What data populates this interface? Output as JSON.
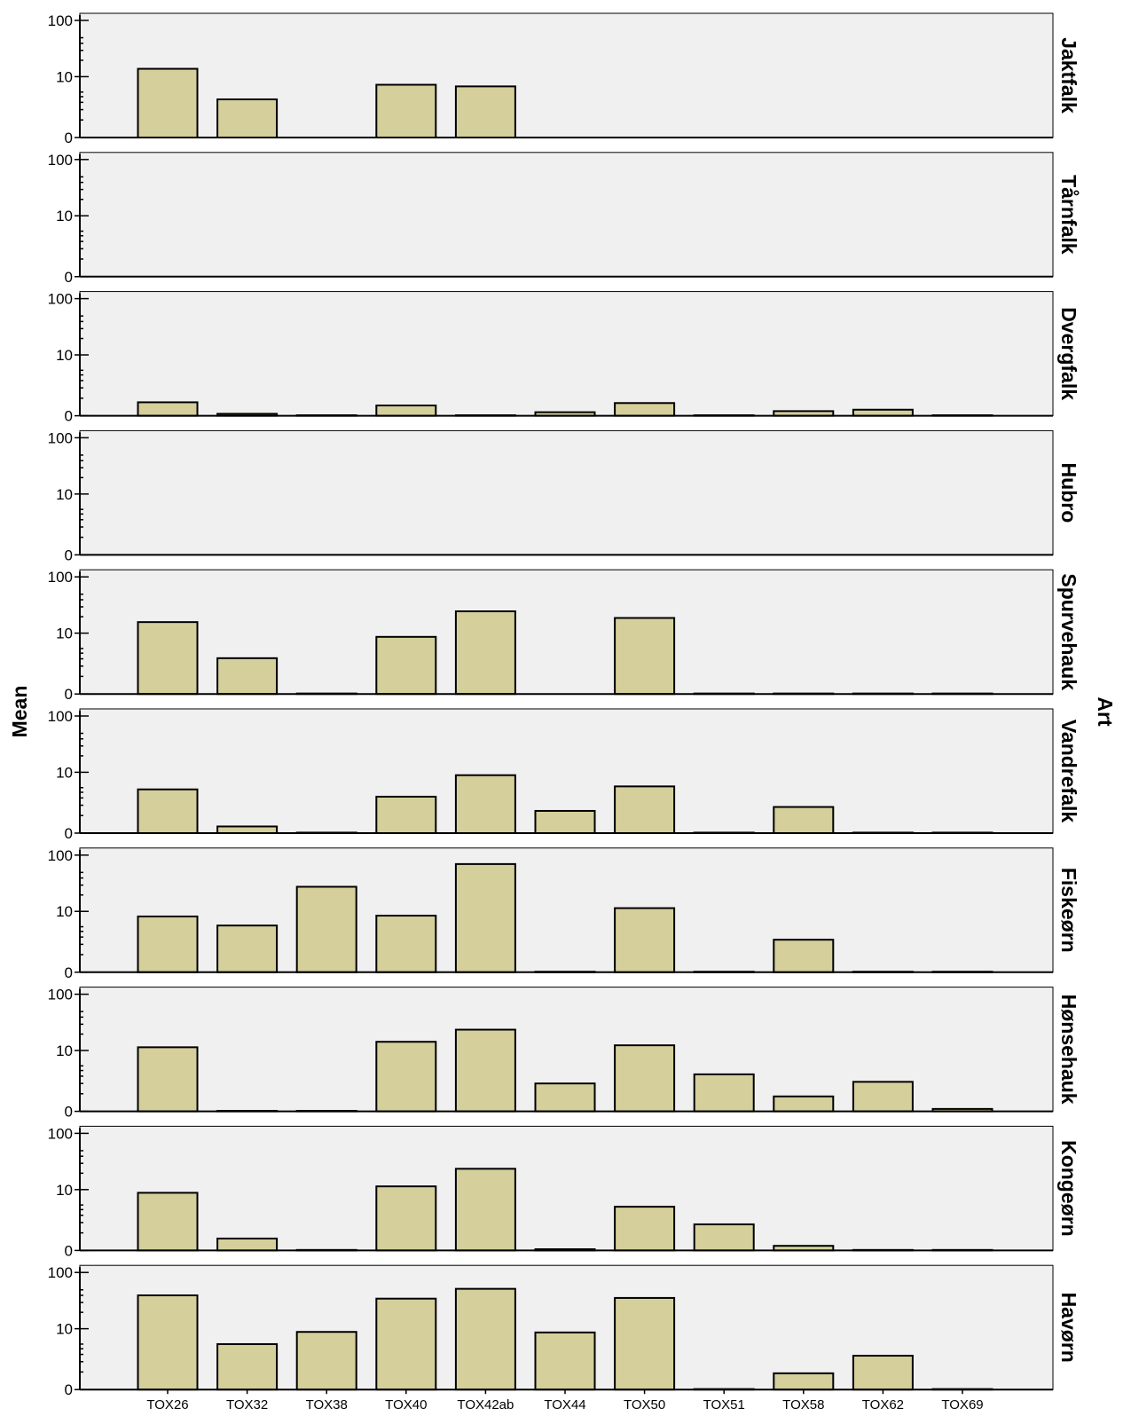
{
  "chart_data": {
    "type": "bar",
    "ylabel": "Mean",
    "facet_label": "Art",
    "yscale": "log1p",
    "yticks": [
      "0",
      "10",
      "100"
    ],
    "ytick_values": [
      0,
      10,
      100
    ],
    "categories": [
      "TOX26",
      "TOX32",
      "TOX38",
      "TOX40",
      "TOX42ab",
      "TOX44",
      "TOX50",
      "TOX51",
      "TOX58",
      "TOX62",
      "TOX69"
    ],
    "bar_color": "#d4cf9b",
    "panel_color": "#f0f0f0",
    "series": [
      {
        "name": "Jaktfalk",
        "values": [
          14,
          3.5,
          null,
          7,
          6.5,
          null,
          null,
          null,
          null,
          null,
          null
        ]
      },
      {
        "name": "Tårnfalk",
        "values": [
          null,
          null,
          null,
          null,
          null,
          null,
          null,
          null,
          null,
          null,
          null
        ]
      },
      {
        "name": "Dvergfalk",
        "values": [
          0.7,
          0.08,
          0.02,
          0.5,
          0.02,
          0.15,
          0.65,
          0.02,
          0.2,
          0.27,
          0.02
        ]
      },
      {
        "name": "Hubro",
        "values": [
          null,
          null,
          null,
          null,
          null,
          null,
          null,
          null,
          null,
          null,
          null
        ]
      },
      {
        "name": "Spurvehauk",
        "values": [
          16,
          3.1,
          0.02,
          8.5,
          25,
          null,
          19,
          0.02,
          0.02,
          0.02,
          0.02
        ]
      },
      {
        "name": "Vandrefalk",
        "values": [
          4.6,
          0.3,
          0.02,
          3.2,
          8.8,
          1.4,
          5.3,
          0.02,
          1.8,
          0.02,
          0.02
        ]
      },
      {
        "name": "Fiskeørn",
        "values": [
          8,
          5.3,
          28,
          8.3,
          70,
          0.02,
          11.5,
          0.02,
          2.6,
          0.02,
          0.02
        ]
      },
      {
        "name": "Hønsehauk",
        "values": [
          11.5,
          0.02,
          0.02,
          14.5,
          24,
          2,
          12.5,
          3.3,
          0.8,
          2.2,
          0.1
        ]
      },
      {
        "name": "Kongeørn",
        "values": [
          8.7,
          0.6,
          0.02,
          11.5,
          24,
          0.05,
          4.6,
          1.8,
          0.2,
          0.02,
          0.02
        ]
      },
      {
        "name": "Havørn",
        "values": [
          40,
          5,
          8.7,
          35,
          52,
          8.5,
          36,
          0.02,
          0.9,
          2.8,
          0.02
        ]
      }
    ]
  }
}
